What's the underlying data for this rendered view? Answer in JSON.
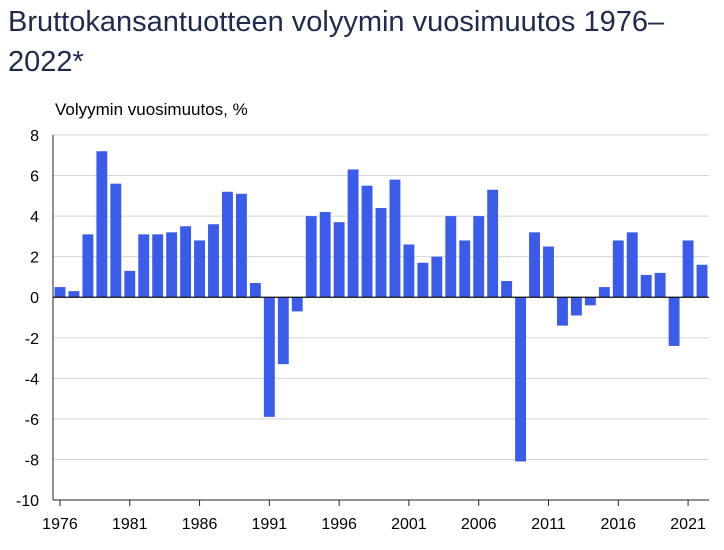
{
  "chart_data": {
    "type": "bar",
    "title": "Bruttokansantuotteen volyymin vuosimuutos 1976–2022*",
    "ylabel": "Volyymin vuosimuutos, %",
    "xlabel": "",
    "ylim": [
      -10,
      8
    ],
    "y_ticks": [
      "8",
      "6",
      "4",
      "2",
      "0",
      "-2",
      "-4",
      "-6",
      "-8",
      "-10"
    ],
    "y_tick_values": [
      8,
      6,
      4,
      2,
      0,
      -2,
      -4,
      -6,
      -8,
      -10
    ],
    "x_tick_labels": [
      "1976",
      "1981",
      "1986",
      "1991",
      "1996",
      "2001",
      "2006",
      "2011",
      "2016",
      "2021"
    ],
    "x_tick_years": [
      1976,
      1981,
      1986,
      1991,
      1996,
      2001,
      2006,
      2011,
      2016,
      2021
    ],
    "grid": true,
    "bar_color": "#3b5bea",
    "categories": [
      1976,
      1977,
      1978,
      1979,
      1980,
      1981,
      1982,
      1983,
      1984,
      1985,
      1986,
      1987,
      1988,
      1989,
      1990,
      1991,
      1992,
      1993,
      1994,
      1995,
      1996,
      1997,
      1998,
      1999,
      2000,
      2001,
      2002,
      2003,
      2004,
      2005,
      2006,
      2007,
      2008,
      2009,
      2010,
      2011,
      2012,
      2013,
      2014,
      2015,
      2016,
      2017,
      2018,
      2019,
      2020,
      2021,
      2022
    ],
    "values": [
      0.5,
      0.3,
      3.1,
      7.2,
      5.6,
      1.3,
      3.1,
      3.1,
      3.2,
      3.5,
      2.8,
      3.6,
      5.2,
      5.1,
      0.7,
      -5.9,
      -3.3,
      -0.7,
      4.0,
      4.2,
      3.7,
      6.3,
      5.5,
      4.4,
      5.8,
      2.6,
      1.7,
      2.0,
      4.0,
      2.8,
      4.0,
      5.3,
      0.8,
      -8.1,
      3.2,
      2.5,
      -1.4,
      -0.9,
      -0.4,
      0.5,
      2.8,
      3.2,
      1.1,
      1.2,
      -2.4,
      2.8,
      1.6
    ]
  }
}
